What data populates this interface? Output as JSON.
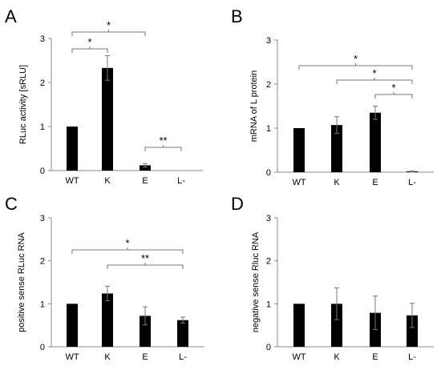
{
  "figure": {
    "panels": [
      {
        "letter": "A"
      },
      {
        "letter": "B"
      },
      {
        "letter": "C"
      },
      {
        "letter": "D"
      }
    ]
  },
  "chart_data": [
    {
      "type": "bar",
      "panel": "A",
      "categories": [
        "WT",
        "K",
        "E",
        "L-"
      ],
      "values": [
        1.0,
        2.33,
        0.12,
        0.0
      ],
      "errors": [
        0.0,
        0.28,
        0.04,
        0.0
      ],
      "ylabel": "RLuc activity [sRLU]",
      "xlabel": "",
      "ylim": [
        0,
        3
      ],
      "yticks": [
        0,
        1,
        2,
        3
      ],
      "bar_color": "#000000",
      "significance": [
        {
          "from": 0,
          "to": 1,
          "label": "*"
        },
        {
          "from": 0,
          "to": 2,
          "label": "*"
        },
        {
          "from": 2,
          "to": 3,
          "label": "**"
        }
      ]
    },
    {
      "type": "bar",
      "panel": "B",
      "categories": [
        "WT",
        "K",
        "E",
        "L-"
      ],
      "values": [
        1.0,
        1.07,
        1.35,
        0.02
      ],
      "errors": [
        0.0,
        0.19,
        0.15,
        0.01
      ],
      "ylabel": "mRNA of L protein",
      "xlabel": "",
      "ylim": [
        0,
        3
      ],
      "yticks": [
        0,
        1,
        2,
        3
      ],
      "bar_color": "#000000",
      "significance": [
        {
          "from": 0,
          "to": 3,
          "label": "*"
        },
        {
          "from": 1,
          "to": 3,
          "label": "*"
        },
        {
          "from": 2,
          "to": 3,
          "label": "*"
        }
      ]
    },
    {
      "type": "bar",
      "panel": "C",
      "categories": [
        "WT",
        "K",
        "E",
        "L-"
      ],
      "values": [
        1.0,
        1.24,
        0.72,
        0.62
      ],
      "errors": [
        0.0,
        0.17,
        0.21,
        0.07
      ],
      "ylabel": "positive sense RLuc RNA",
      "xlabel": "",
      "ylim": [
        0,
        3
      ],
      "yticks": [
        0,
        1,
        2,
        3
      ],
      "bar_color": "#000000",
      "significance": [
        {
          "from": 0,
          "to": 3,
          "label": "*"
        },
        {
          "from": 1,
          "to": 3,
          "label": "**"
        }
      ]
    },
    {
      "type": "bar",
      "panel": "D",
      "categories": [
        "WT",
        "K",
        "E",
        "L-"
      ],
      "values": [
        1.0,
        1.0,
        0.79,
        0.73
      ],
      "errors": [
        0.0,
        0.37,
        0.39,
        0.28
      ],
      "ylabel": "negative sense Rluc RNA",
      "xlabel": "",
      "ylim": [
        0,
        3
      ],
      "yticks": [
        0,
        1,
        2,
        3
      ],
      "bar_color": "#000000",
      "significance": []
    }
  ]
}
